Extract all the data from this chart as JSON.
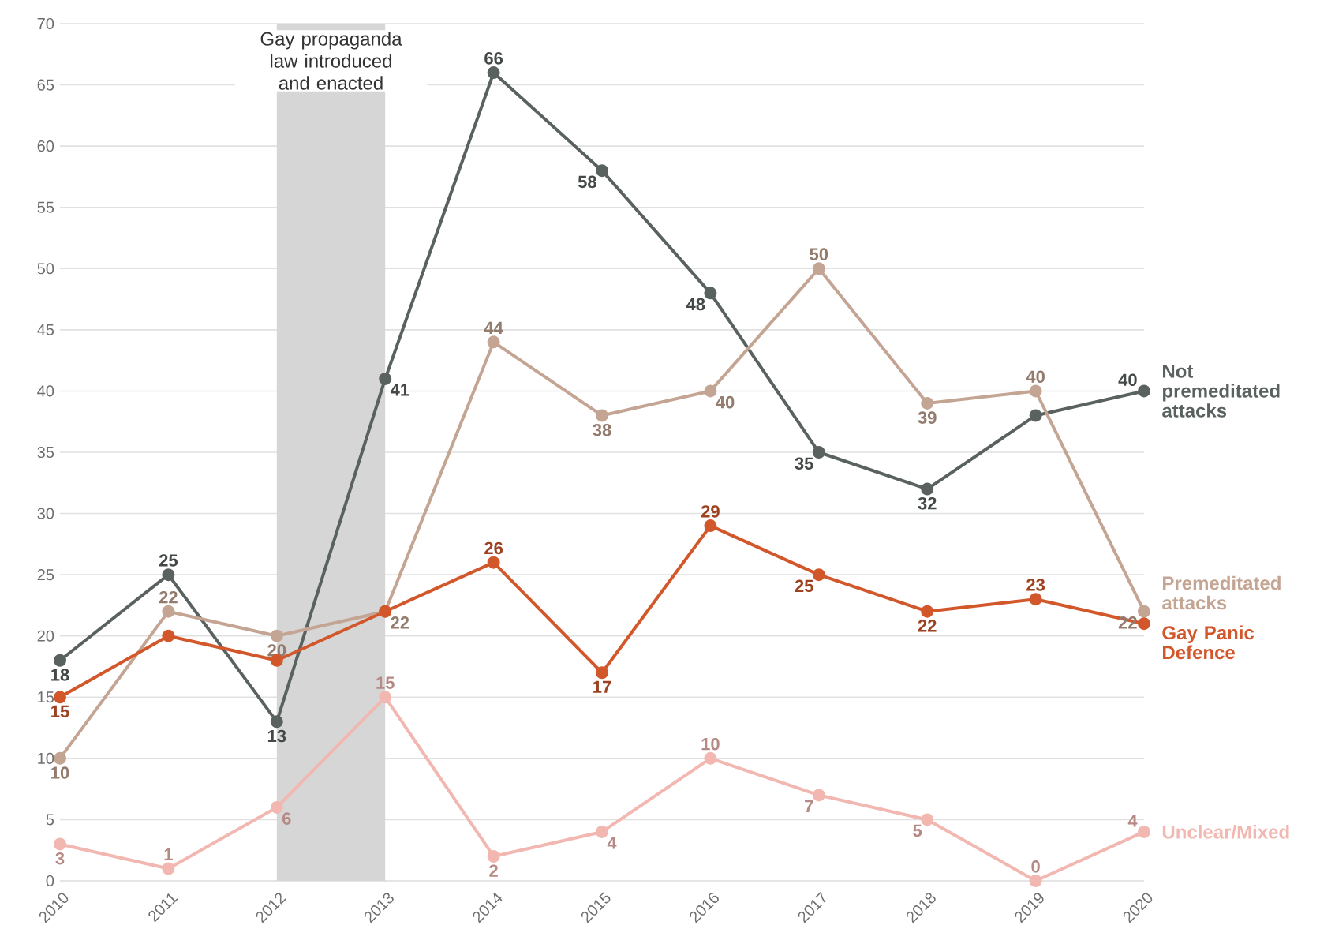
{
  "chart_data": {
    "type": "line",
    "x": [
      2010,
      2011,
      2012,
      2013,
      2014,
      2015,
      2016,
      2017,
      2018,
      2019,
      2020
    ],
    "series": [
      {
        "name": "Not premeditated attacks",
        "color": "#59625f",
        "values": [
          18,
          25,
          13,
          41,
          66,
          58,
          48,
          35,
          32,
          38,
          40
        ],
        "value_labels": [
          "18",
          "25",
          "13",
          "41",
          "66",
          "58",
          "48",
          "35",
          "32",
          null,
          "40"
        ]
      },
      {
        "name": "Premeditated attacks",
        "color": "#c4a593",
        "values": [
          10,
          22,
          20,
          22,
          44,
          38,
          40,
          50,
          39,
          40,
          22
        ],
        "value_labels": [
          "10",
          "22",
          "20",
          "22",
          "44",
          "38",
          "40",
          "50",
          "39",
          "40",
          "22"
        ]
      },
      {
        "name": "Gay Panic Defence",
        "color": "#d2572b",
        "values": [
          15,
          20,
          18,
          22,
          26,
          17,
          29,
          25,
          22,
          23,
          21
        ],
        "value_labels": [
          "15",
          null,
          null,
          null,
          "26",
          "17",
          "29",
          "25",
          "22",
          "23",
          null
        ]
      },
      {
        "name": "Unclear/Mixed",
        "color": "#f1b7b0",
        "values": [
          3,
          1,
          6,
          15,
          2,
          4,
          10,
          7,
          5,
          0,
          4
        ],
        "value_labels": [
          "3",
          "1",
          "6",
          "15",
          "2",
          "4",
          "10",
          "7",
          "5",
          "0",
          "4"
        ]
      }
    ],
    "xlim": [
      2010,
      2020
    ],
    "xticks": [
      2010,
      2011,
      2012,
      2013,
      2014,
      2015,
      2016,
      2017,
      2018,
      2019,
      2020
    ],
    "ylim": [
      0,
      70
    ],
    "yticks": [
      0,
      5,
      10,
      15,
      20,
      25,
      30,
      35,
      40,
      45,
      50,
      55,
      60,
      65,
      70
    ],
    "bands": [
      {
        "axis": "x",
        "from": 2012,
        "to": 2013,
        "label": "Gay propaganda law introduced and enacted",
        "color": "#d6d6d6"
      }
    ],
    "grid": "y",
    "legend": "right",
    "marker": "circle",
    "line_style": "solid"
  }
}
